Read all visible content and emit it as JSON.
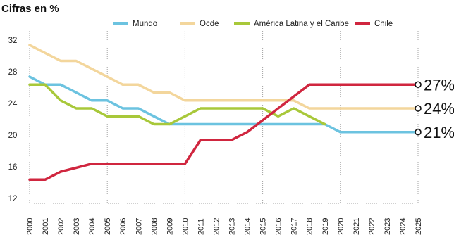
{
  "chart_data": {
    "type": "line",
    "title": "Cifras en %",
    "xlabel": "",
    "ylabel": "",
    "ylim": [
      12,
      32
    ],
    "yticks": [
      12,
      16,
      20,
      24,
      28,
      32
    ],
    "grid": "vertical dotted",
    "legend_position": "top",
    "categories": [
      "2000",
      "2001",
      "2002",
      "2003",
      "2004",
      "2005",
      "2006",
      "2007",
      "2008",
      "2009",
      "2010",
      "2011",
      "2012",
      "2013",
      "2014",
      "2015",
      "2016",
      "2017",
      "2018",
      "2019",
      "2020",
      "2021",
      "2022",
      "2023",
      "2024",
      "2025"
    ],
    "series": [
      {
        "name": "Mundo",
        "color": "#6cc3e0",
        "values": [
          28,
          27,
          27,
          26,
          25,
          25,
          24,
          24,
          23,
          22,
          22,
          22,
          22,
          22,
          22,
          22,
          22,
          22,
          22,
          22,
          21,
          21,
          21,
          21,
          21,
          21
        ]
      },
      {
        "name": "Ocde",
        "color": "#f3d69c",
        "values": [
          32,
          31,
          30,
          30,
          29,
          28,
          27,
          27,
          26,
          26,
          25,
          25,
          25,
          25,
          25,
          25,
          25,
          25,
          24,
          24,
          24,
          24,
          24,
          24,
          24,
          24
        ]
      },
      {
        "name": "América Latina y el Caribe",
        "color": "#a8c83a",
        "values": [
          27,
          27,
          25,
          24,
          24,
          23,
          23,
          23,
          22,
          22,
          23,
          24,
          24,
          24,
          24,
          24,
          23,
          24,
          23,
          22,
          null,
          null,
          null,
          null,
          null,
          null
        ]
      },
      {
        "name": "Chile",
        "color": "#d0263f",
        "values": [
          15,
          15,
          16,
          16.5,
          17,
          17,
          17,
          17,
          17,
          17,
          17,
          20,
          20,
          20,
          21,
          22.5,
          24,
          25.5,
          27,
          27,
          27,
          27,
          27,
          27,
          27,
          27
        ]
      }
    ],
    "end_labels": [
      {
        "text": "27%",
        "value": 27
      },
      {
        "text": "24%",
        "value": 24
      },
      {
        "text": "21%",
        "value": 21
      }
    ]
  }
}
